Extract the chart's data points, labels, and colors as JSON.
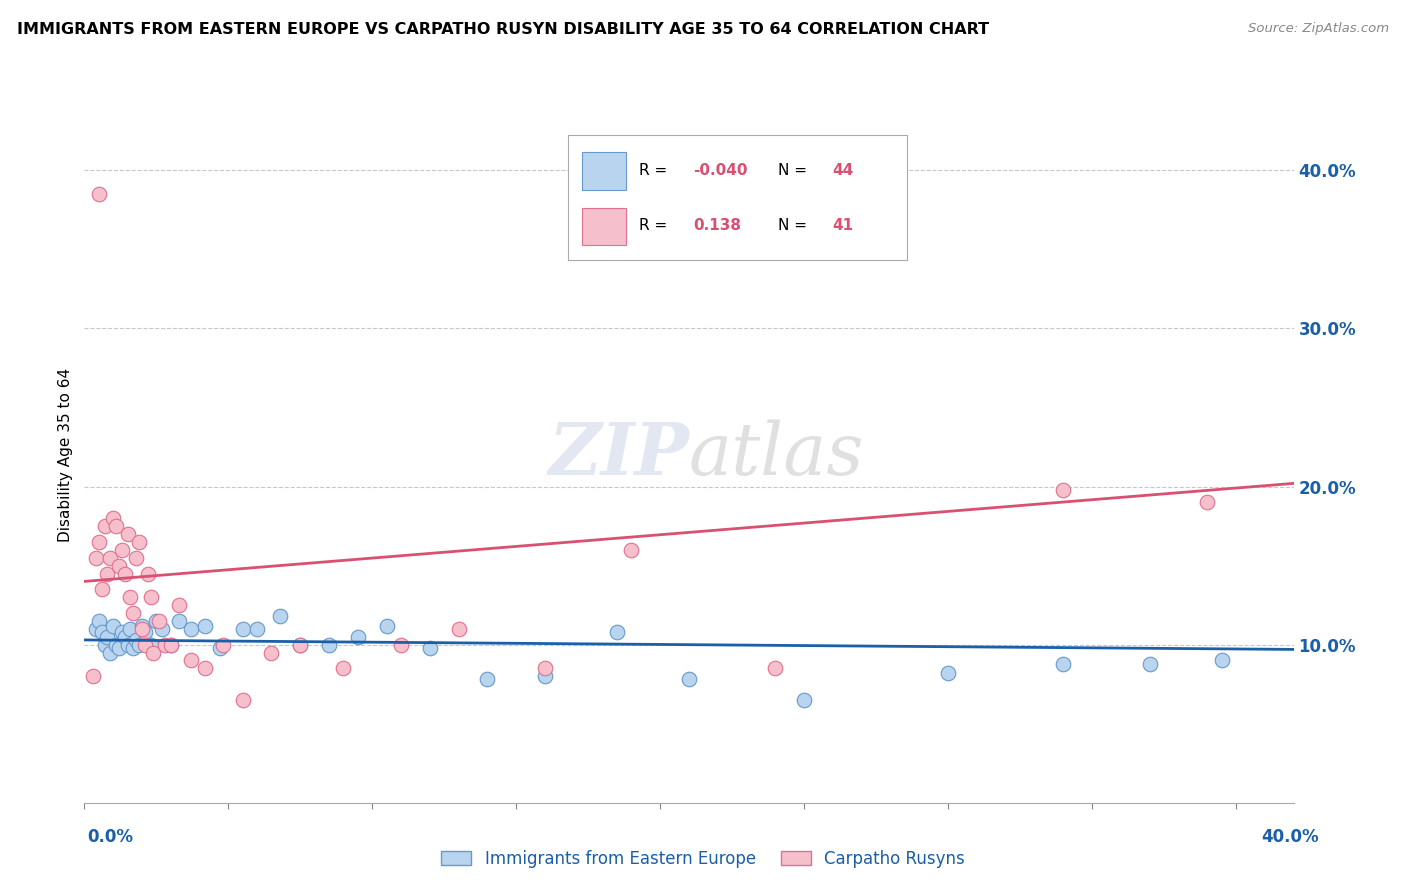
{
  "title": "IMMIGRANTS FROM EASTERN EUROPE VS CARPATHO RUSYN DISABILITY AGE 35 TO 64 CORRELATION CHART",
  "source": "Source: ZipAtlas.com",
  "ylabel": "Disability Age 35 to 64",
  "ylim": [
    0.0,
    0.44
  ],
  "xlim": [
    0.0,
    0.42
  ],
  "yticks": [
    0.1,
    0.2,
    0.3,
    0.4
  ],
  "ytick_labels": [
    "10.0%",
    "20.0%",
    "30.0%",
    "40.0%"
  ],
  "grid_color": "#c8c8c8",
  "background_color": "#ffffff",
  "blue_marker_face": "#b8d4ee",
  "blue_marker_edge": "#6699cc",
  "pink_marker_face": "#f5c0cc",
  "pink_marker_edge": "#e07090",
  "blue_line_color": "#1a5fa8",
  "pink_line_color": "#d95070",
  "legend_r_blue": "-0.040",
  "legend_n_blue": "44",
  "legend_r_pink": "0.138",
  "legend_n_pink": "41",
  "blue_scatter_x": [
    0.004,
    0.005,
    0.006,
    0.007,
    0.008,
    0.009,
    0.01,
    0.011,
    0.012,
    0.013,
    0.014,
    0.015,
    0.016,
    0.017,
    0.018,
    0.019,
    0.02,
    0.021,
    0.022,
    0.023,
    0.025,
    0.027,
    0.03,
    0.033,
    0.037,
    0.042,
    0.047,
    0.055,
    0.06,
    0.068,
    0.075,
    0.085,
    0.095,
    0.105,
    0.12,
    0.14,
    0.16,
    0.185,
    0.21,
    0.25,
    0.3,
    0.34,
    0.37,
    0.395
  ],
  "blue_scatter_y": [
    0.11,
    0.115,
    0.108,
    0.1,
    0.105,
    0.095,
    0.112,
    0.1,
    0.098,
    0.108,
    0.105,
    0.1,
    0.11,
    0.098,
    0.103,
    0.1,
    0.112,
    0.108,
    0.1,
    0.1,
    0.115,
    0.11,
    0.1,
    0.115,
    0.11,
    0.112,
    0.098,
    0.11,
    0.11,
    0.118,
    0.1,
    0.1,
    0.105,
    0.112,
    0.098,
    0.078,
    0.08,
    0.108,
    0.078,
    0.065,
    0.082,
    0.088,
    0.088,
    0.09
  ],
  "pink_scatter_x": [
    0.003,
    0.004,
    0.005,
    0.006,
    0.007,
    0.008,
    0.009,
    0.01,
    0.011,
    0.012,
    0.013,
    0.014,
    0.015,
    0.016,
    0.017,
    0.018,
    0.019,
    0.02,
    0.021,
    0.022,
    0.023,
    0.024,
    0.026,
    0.028,
    0.03,
    0.033,
    0.037,
    0.042,
    0.048,
    0.055,
    0.065,
    0.075,
    0.09,
    0.11,
    0.13,
    0.16,
    0.19,
    0.24,
    0.34,
    0.39,
    0.005
  ],
  "pink_scatter_y": [
    0.08,
    0.155,
    0.165,
    0.135,
    0.175,
    0.145,
    0.155,
    0.18,
    0.175,
    0.15,
    0.16,
    0.145,
    0.17,
    0.13,
    0.12,
    0.155,
    0.165,
    0.11,
    0.1,
    0.145,
    0.13,
    0.095,
    0.115,
    0.1,
    0.1,
    0.125,
    0.09,
    0.085,
    0.1,
    0.065,
    0.095,
    0.1,
    0.085,
    0.1,
    0.11,
    0.085,
    0.16,
    0.085,
    0.198,
    0.19,
    0.385
  ],
  "blue_trend_x": [
    0.0,
    0.42
  ],
  "blue_trend_y": [
    0.103,
    0.097
  ],
  "pink_trend_x": [
    0.0,
    0.42
  ],
  "pink_trend_y": [
    0.14,
    0.202
  ]
}
